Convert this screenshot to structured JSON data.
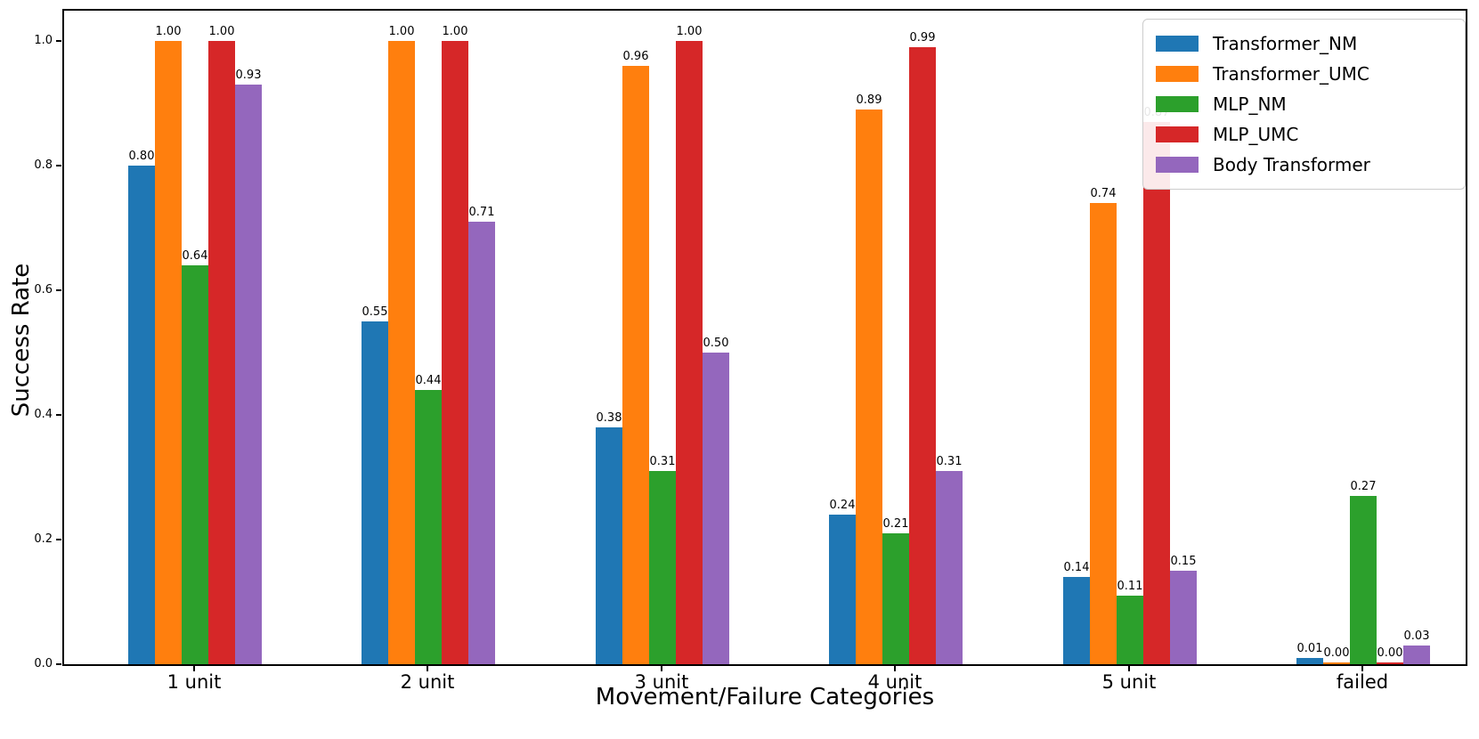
{
  "chart_data": {
    "type": "bar",
    "title": "",
    "xlabel": "Movement/Failure Categories",
    "ylabel": "Success Rate",
    "categories": [
      "1 unit",
      "2 unit",
      "3 unit",
      "4 unit",
      "5 unit",
      "failed"
    ],
    "series": [
      {
        "name": "Transformer_NM",
        "color": "#1f77b4",
        "values": [
          0.8,
          0.55,
          0.38,
          0.24,
          0.14,
          0.01
        ]
      },
      {
        "name": "Transformer_UMC",
        "color": "#ff7f0e",
        "values": [
          1.0,
          1.0,
          0.96,
          0.89,
          0.74,
          0.003
        ]
      },
      {
        "name": "MLP_NM",
        "color": "#2ca02c",
        "values": [
          0.64,
          0.44,
          0.31,
          0.21,
          0.11,
          0.27
        ]
      },
      {
        "name": "MLP_UMC",
        "color": "#d62728",
        "values": [
          1.0,
          1.0,
          1.0,
          0.99,
          0.87,
          0.003
        ]
      },
      {
        "name": "Body Transformer",
        "color": "#9467bd",
        "values": [
          0.93,
          0.71,
          0.5,
          0.31,
          0.15,
          0.03
        ]
      }
    ],
    "bar_labels": [
      [
        "0.80",
        "0.55",
        "0.38",
        "0.24",
        "0.14",
        "0.01"
      ],
      [
        "1.00",
        "1.00",
        "0.96",
        "0.89",
        "0.74",
        "0.00"
      ],
      [
        "0.64",
        "0.44",
        "0.31",
        "0.21",
        "0.11",
        "0.27"
      ],
      [
        "1.00",
        "1.00",
        "1.00",
        "0.99",
        "0.87",
        "0.00"
      ],
      [
        "0.93",
        "0.71",
        "0.50",
        "0.31",
        "0.15",
        "0.03"
      ]
    ],
    "yticks": [
      "0.0",
      "0.2",
      "0.4",
      "0.6",
      "0.8",
      "1.0"
    ],
    "ylim": [
      0,
      1.05
    ],
    "grid": false,
    "legend_position": "upper right",
    "axis_color": "#000000"
  }
}
